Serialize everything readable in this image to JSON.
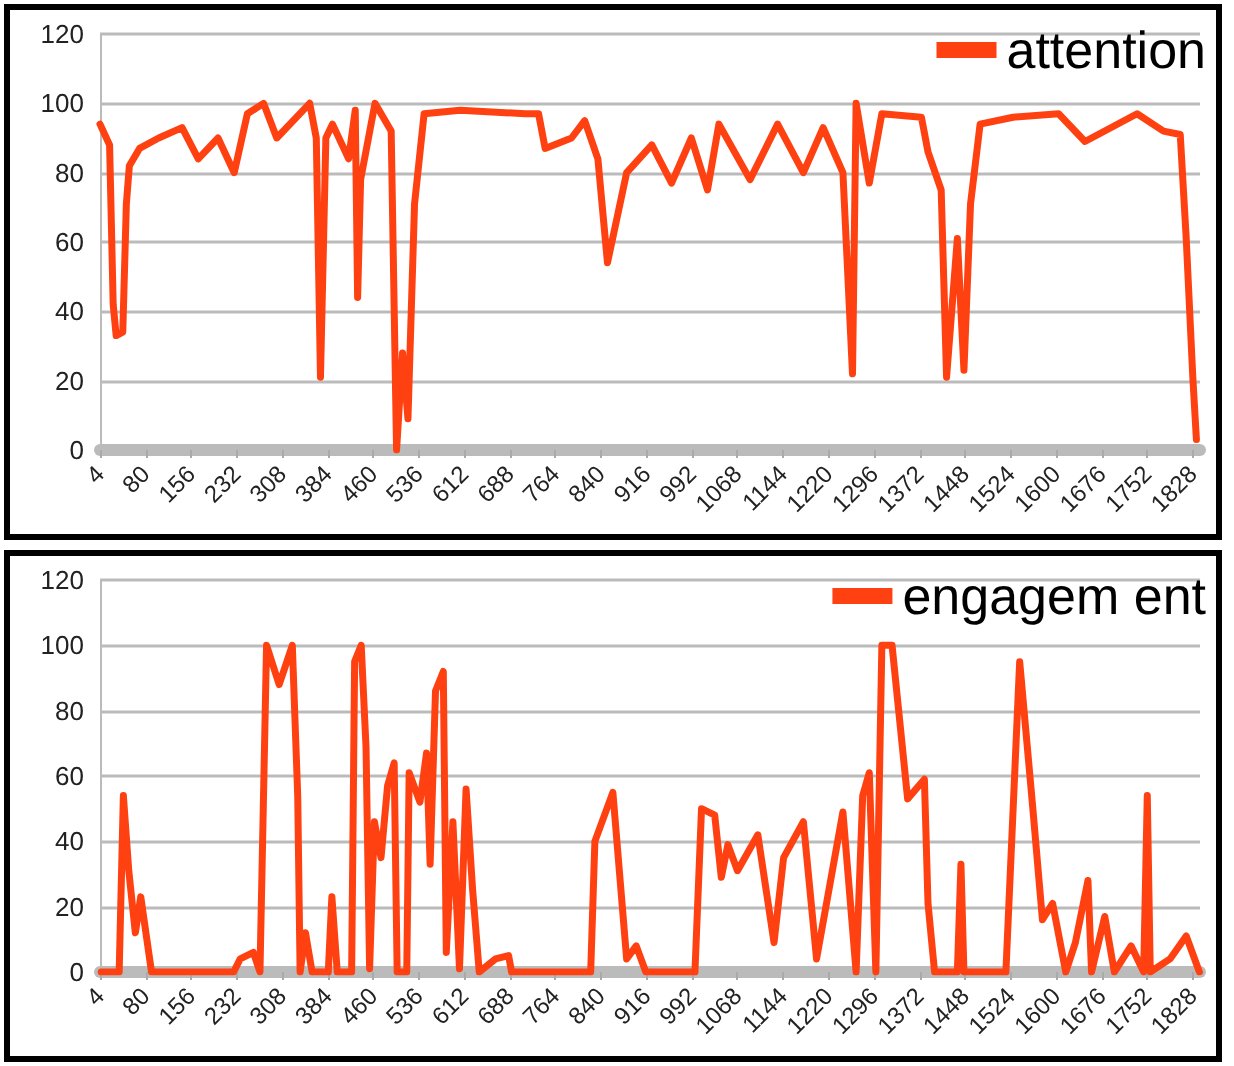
{
  "chart_data": [
    {
      "type": "line",
      "xlim": [
        4,
        1840
      ],
      "ylim": [
        0,
        120
      ],
      "xticks": [
        4,
        80,
        156,
        232,
        308,
        384,
        460,
        536,
        612,
        688,
        764,
        840,
        916,
        992,
        1068,
        1144,
        1220,
        1296,
        1372,
        1448,
        1524,
        1600,
        1676,
        1752,
        1828
      ],
      "yticks": [
        0,
        20,
        40,
        60,
        80,
        100,
        120
      ],
      "grid": "y",
      "legend": "top right",
      "marker": "none",
      "line_style": "solid",
      "series": [
        {
          "name": "attention",
          "color": "#ff4112",
          "x": [
            4,
            20,
            26,
            31,
            42,
            48,
            53,
            70,
            102,
            141,
            168,
            201,
            228,
            250,
            277,
            299,
            354,
            365,
            372,
            381,
            392,
            419,
            430,
            434,
            439,
            463,
            490,
            499,
            509,
            518,
            529,
            545,
            605,
            714,
            736,
            747,
            791,
            813,
            835,
            851,
            883,
            925,
            958,
            991,
            1018,
            1037,
            1089,
            1135,
            1178,
            1211,
            1244,
            1260,
            1266,
            1288,
            1309,
            1375,
            1386,
            1408,
            1417,
            1435,
            1446,
            1457,
            1473,
            1528,
            1604,
            1648,
            1735,
            1779,
            1807,
            1817,
            1828,
            1834
          ],
          "values": [
            94,
            88,
            42,
            33,
            34,
            71,
            82,
            87,
            90,
            93,
            84,
            90,
            80,
            97,
            100,
            90,
            100,
            90,
            21,
            90,
            94,
            84,
            98,
            44,
            78,
            100,
            92,
            0,
            28,
            9,
            71,
            97,
            98,
            97,
            97,
            87,
            90,
            95,
            84,
            54,
            80,
            88,
            77,
            90,
            75,
            94,
            78,
            94,
            80,
            93,
            80,
            22,
            100,
            77,
            97,
            96,
            86,
            75,
            21,
            61,
            23,
            71,
            94,
            96,
            97,
            89,
            97,
            92,
            91,
            61,
            21,
            3
          ]
        }
      ]
    },
    {
      "type": "line",
      "xlim": [
        4,
        1840
      ],
      "ylim": [
        0,
        120
      ],
      "xticks": [
        4,
        80,
        156,
        232,
        308,
        384,
        460,
        536,
        612,
        688,
        764,
        840,
        916,
        992,
        1068,
        1144,
        1220,
        1296,
        1372,
        1448,
        1524,
        1600,
        1676,
        1752,
        1828
      ],
      "yticks": [
        0,
        20,
        40,
        60,
        80,
        100,
        120
      ],
      "grid": "y",
      "legend": "top right",
      "marker": "none",
      "line_style": "solid",
      "series": [
        {
          "name": "engagem ent",
          "color": "#ff4112",
          "x": [
            6,
            36,
            43,
            52,
            63,
            72,
            90,
            227,
            238,
            260,
            271,
            282,
            303,
            325,
            334,
            338,
            347,
            358,
            385,
            391,
            400,
            424,
            429,
            440,
            448,
            454,
            462,
            473,
            484,
            495,
            500,
            516,
            520,
            538,
            549,
            555,
            564,
            577,
            582,
            593,
            604,
            615,
            626,
            637,
            664,
            686,
            691,
            823,
            830,
            860,
            883,
            899,
            915,
            997,
            1008,
            1030,
            1041,
            1052,
            1068,
            1102,
            1129,
            1145,
            1178,
            1200,
            1244,
            1266,
            1277,
            1288,
            1299,
            1309,
            1326,
            1352,
            1380,
            1386,
            1397,
            1435,
            1441,
            1446,
            1516,
            1539,
            1561,
            1577,
            1594,
            1616,
            1632,
            1653,
            1659,
            1681,
            1697,
            1725,
            1746,
            1752,
            1757,
            1790,
            1817,
            1839
          ],
          "values": [
            0,
            0,
            54,
            31,
            12,
            23,
            0,
            0,
            4,
            6,
            0,
            100,
            88,
            100,
            54,
            0,
            12,
            0,
            0,
            23,
            0,
            0,
            95,
            100,
            69,
            1,
            46,
            35,
            57,
            64,
            0,
            0,
            61,
            52,
            67,
            33,
            86,
            92,
            6,
            46,
            1,
            56,
            25,
            0,
            4,
            5,
            0,
            0,
            40,
            55,
            4,
            8,
            0,
            0,
            50,
            48,
            29,
            39,
            31,
            42,
            9,
            35,
            46,
            4,
            49,
            0,
            54,
            61,
            0,
            100,
            100,
            53,
            59,
            21,
            0,
            0,
            33,
            0,
            0,
            95,
            50,
            16,
            21,
            0,
            9,
            28,
            0,
            17,
            0,
            8,
            0,
            54,
            0,
            4,
            11,
            0
          ]
        }
      ]
    }
  ]
}
